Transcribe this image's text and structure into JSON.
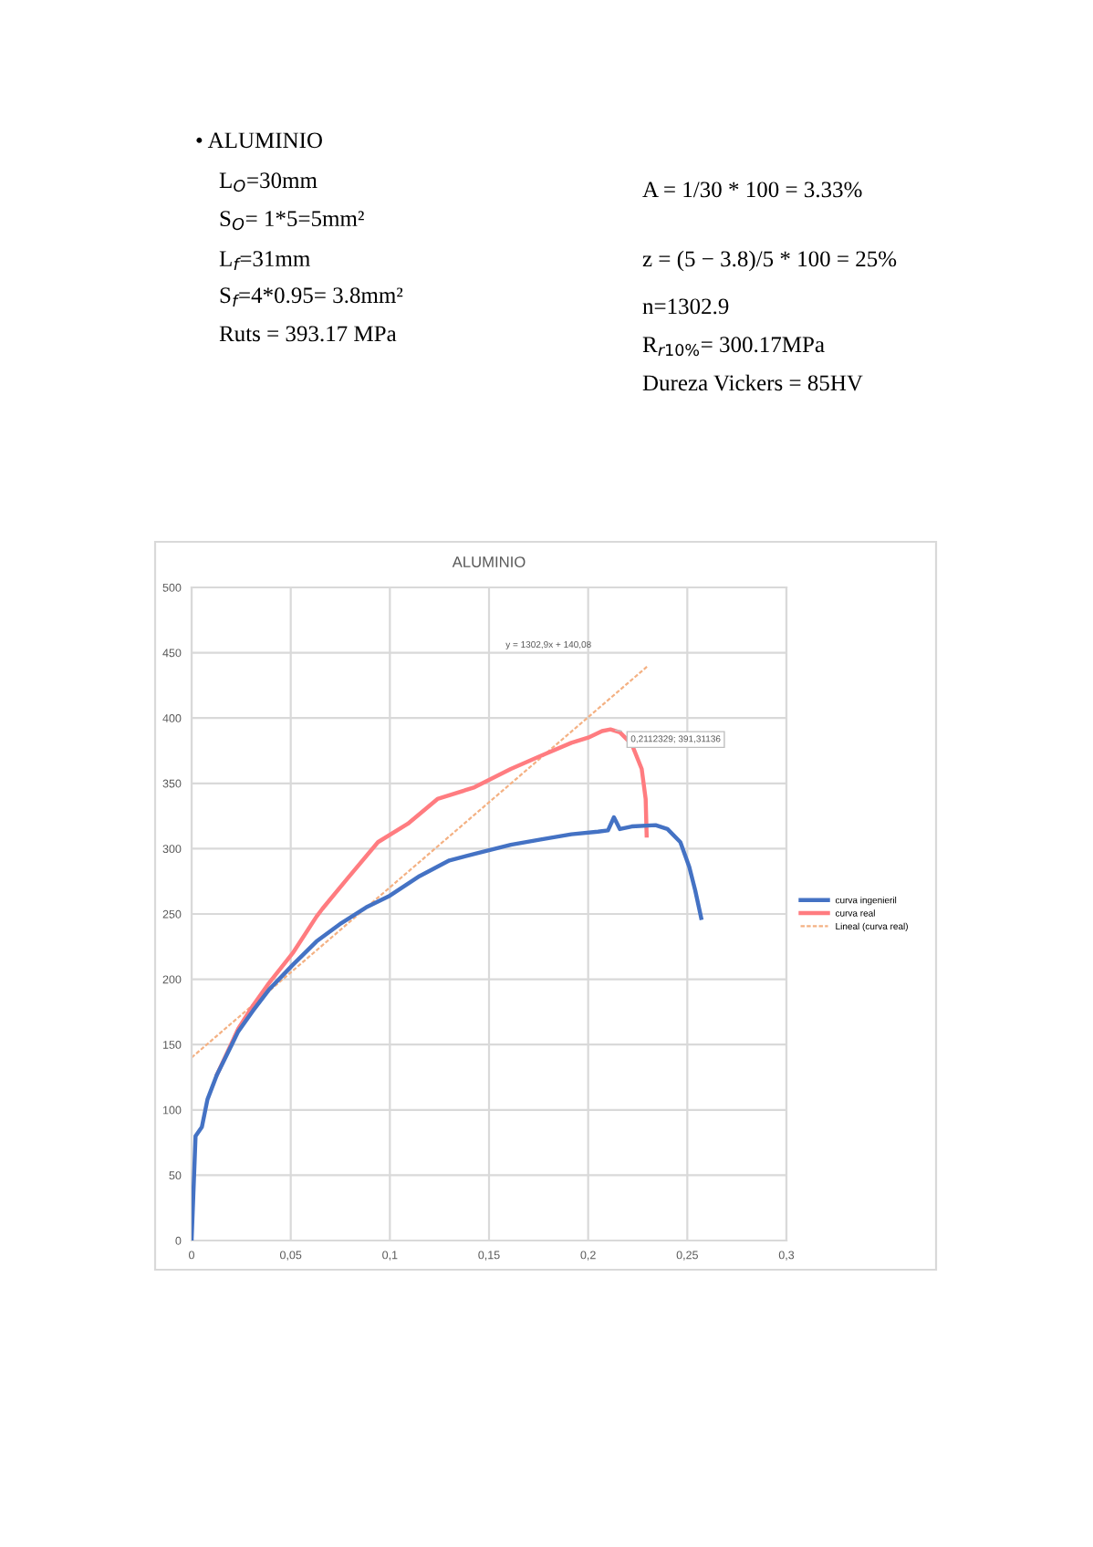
{
  "chart_data": {
    "type": "line",
    "title": "ALUMINIO",
    "series": [
      {
        "name": "curva ingenieril",
        "color": "#4472c4",
        "x": [
          0,
          0.001,
          0.002,
          0.0052,
          0.008,
          0.0128,
          0.0174,
          0.0235,
          0.031,
          0.039,
          0.051,
          0.063,
          0.0755,
          0.088,
          0.1,
          0.115,
          0.13,
          0.1427,
          0.161,
          0.176,
          0.1915,
          0.205,
          0.21,
          0.213,
          0.216,
          0.222,
          0.234,
          0.24,
          0.2465,
          0.251,
          0.254,
          0.257
        ],
        "values": [
          0,
          40,
          80,
          87,
          108,
          127,
          141,
          160,
          176,
          192,
          211,
          229,
          243,
          255,
          264,
          279,
          291,
          296,
          303,
          307,
          311,
          313,
          314,
          324,
          315,
          317,
          318,
          315,
          305,
          286,
          268,
          247
        ]
      },
      {
        "name": "curva real",
        "color": "#ff7c80",
        "x": [
          0.0128,
          0.0174,
          0.0235,
          0.031,
          0.039,
          0.051,
          0.063,
          0.066,
          0.0785,
          0.094,
          0.109,
          0.124,
          0.1427,
          0.161,
          0.176,
          0.1915,
          0.2,
          0.207,
          0.2112329,
          0.216,
          0.222,
          0.227,
          0.229,
          0.2295
        ],
        "values": [
          127,
          142,
          162,
          180,
          197,
          220,
          248,
          254,
          277,
          305,
          319,
          338,
          347,
          361,
          371,
          381,
          385,
          390,
          391.31136,
          389,
          380,
          361,
          338,
          310
        ]
      },
      {
        "name": "Lineal (curva real)",
        "color": "#f4b183",
        "line_style": "dashed",
        "x": [
          0,
          0.2297
        ],
        "values": [
          140.08,
          439.35
        ]
      }
    ],
    "xlim": [
      0,
      0.3
    ],
    "ylim": [
      0,
      500
    ],
    "xticks": [
      0,
      {
        "value": 0.05,
        "label": "0,05"
      },
      {
        "value": 0.1,
        "label": "0,1"
      },
      {
        "value": 0.15,
        "label": "0,15"
      },
      {
        "value": 0.2,
        "label": "0,2"
      },
      {
        "value": 0.25,
        "label": "0,25"
      },
      {
        "value": 0.3,
        "label": "0,3"
      }
    ],
    "yticks": [
      0,
      50,
      100,
      150,
      200,
      250,
      300,
      350,
      400,
      450,
      500
    ],
    "grid": true,
    "legend": "right",
    "marker": "none",
    "annotations": [
      "y = 1302,9x + 140,08",
      {
        "text": "0,2112329; 391,31136",
        "x": 0.2112329,
        "y": 391.31136
      },
      "• ALUMINIO",
      "L$_{O}$=30mm",
      "S$_{O}$= 1*5=5mm²",
      "L$_{f}$=31mm",
      "S$_{f}$=4*0.95= 3.8mm²",
      "Ruts = 393.17 MPa",
      "A = 1/30 * 100 = 3.33%",
      "z = (5 − 3.8)/5 * 100 = 25%",
      "n=1302.9",
      "R$_{r10%}$= 300.17MPa",
      "Dureza Vickers = 85HV"
    ]
  }
}
